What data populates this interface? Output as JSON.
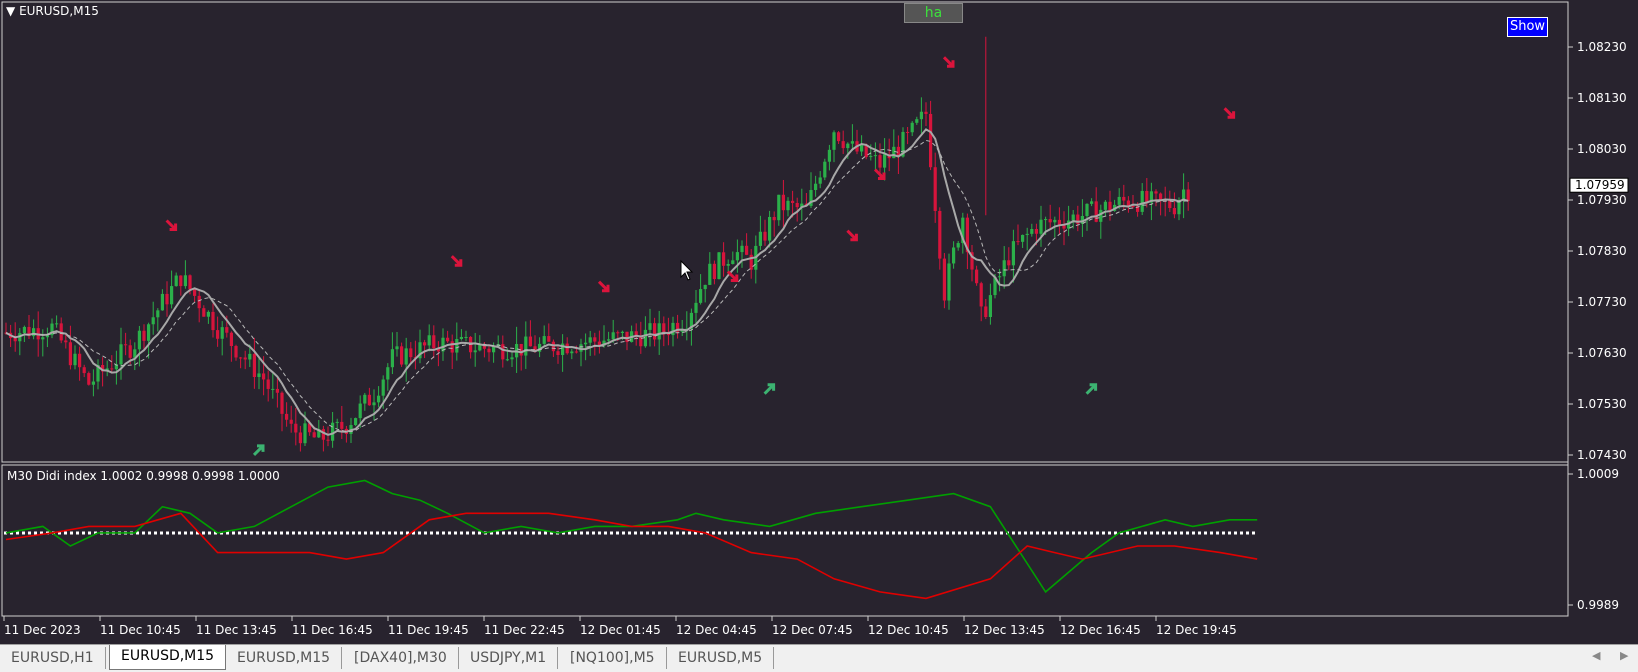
{
  "window": {
    "symbol_title": "EURUSD,M15",
    "indicator_title": "M30 Didi index 1.0002 0.9998 0.9998 1.0000",
    "ha_button": "ha",
    "show_button": "Show",
    "current_price": "1.07959"
  },
  "tabs": [
    {
      "label": "EURUSD,H1",
      "active": false
    },
    {
      "label": "EURUSD,M15",
      "active": true
    },
    {
      "label": "EURUSD,M15",
      "active": false
    },
    {
      "label": "[DAX40],M30",
      "active": false
    },
    {
      "label": "USDJPY,M1",
      "active": false
    },
    {
      "label": "[NQ100],M5",
      "active": false
    },
    {
      "label": "EURUSD,M5",
      "active": false
    }
  ],
  "chart_data": [
    {
      "type": "candlestick",
      "title": "EURUSD,M15",
      "ylim": [
        1.0738,
        1.0828
      ],
      "price_axis_ticks": [
        "1.08230",
        "1.08130",
        "1.08030",
        "1.07930",
        "1.07830",
        "1.07730",
        "1.07630",
        "1.07530",
        "1.07430"
      ],
      "time_axis_labels": [
        "11 Dec 2023",
        "11 Dec 10:45",
        "11 Dec 13:45",
        "11 Dec 16:45",
        "11 Dec 19:45",
        "11 Dec 22:45",
        "12 Dec 01:45",
        "12 Dec 04:45",
        "12 Dec 07:45",
        "12 Dec 10:45",
        "12 Dec 13:45",
        "12 Dec 16:45",
        "12 Dec 19:45"
      ],
      "colors": {
        "bull": "#2bb04a",
        "bear": "#d7143c",
        "ma": "#a8a8a8",
        "ma_slow": "#b8b8b8",
        "arrow_up": "#3cb371",
        "arrow_down": "#dc143c"
      },
      "close_path": [
        [
          0,
          1.0767
        ],
        [
          10,
          1.0768
        ],
        [
          18,
          1.0757
        ],
        [
          28,
          1.0765
        ],
        [
          38,
          1.0778
        ],
        [
          46,
          1.0768
        ],
        [
          56,
          1.0758
        ],
        [
          62,
          1.0748
        ],
        [
          68,
          1.0746
        ],
        [
          74,
          1.0749
        ],
        [
          80,
          1.0755
        ],
        [
          84,
          1.0762
        ],
        [
          94,
          1.0765
        ],
        [
          104,
          1.0764
        ],
        [
          114,
          1.0764
        ],
        [
          124,
          1.0765
        ],
        [
          134,
          1.0766
        ],
        [
          142,
          1.0767
        ],
        [
          148,
          1.077
        ],
        [
          152,
          1.0778
        ],
        [
          158,
          1.0783
        ],
        [
          162,
          1.0781
        ],
        [
          168,
          1.0792
        ],
        [
          174,
          1.0791
        ],
        [
          180,
          1.0807
        ],
        [
          184,
          1.0803
        ],
        [
          190,
          1.08
        ],
        [
          196,
          1.0805
        ],
        [
          200,
          1.081
        ],
        [
          204,
          1.0775
        ],
        [
          208,
          1.079
        ],
        [
          212,
          1.077
        ],
        [
          218,
          1.0782
        ],
        [
          224,
          1.0788
        ],
        [
          234,
          1.079
        ],
        [
          244,
          1.0793
        ],
        [
          254,
          1.0792
        ],
        [
          256,
          1.0795
        ]
      ],
      "arrows_down": [
        [
          36,
          1.0788
        ],
        [
          98,
          1.0781
        ],
        [
          130,
          1.0776
        ],
        [
          158,
          1.0778
        ],
        [
          184,
          1.0786
        ],
        [
          190,
          1.0798
        ],
        [
          205,
          1.082
        ],
        [
          266,
          1.081
        ]
      ],
      "arrows_up": [
        [
          55,
          1.0744
        ],
        [
          166,
          1.0756
        ],
        [
          236,
          1.0756
        ]
      ],
      "bars": 258
    },
    {
      "type": "line",
      "title": "M30 Didi index 1.0002 0.9998 0.9998 1.0000",
      "ylim": [
        0.9989,
        1.0009
      ],
      "axis_ticks": [
        "1.0009",
        "0.9989"
      ],
      "series": [
        {
          "name": "",
          "color": "#00a000",
          "points": [
            [
              0,
              1.0
            ],
            [
              8,
              1.0001
            ],
            [
              14,
              0.9998
            ],
            [
              20,
              1.0
            ],
            [
              28,
              1.0
            ],
            [
              34,
              1.0004
            ],
            [
              40,
              1.0003
            ],
            [
              46,
              1.0
            ],
            [
              54,
              1.0001
            ],
            [
              62,
              1.0004
            ],
            [
              70,
              1.0007
            ],
            [
              78,
              1.0008
            ],
            [
              84,
              1.0006
            ],
            [
              90,
              1.0005
            ],
            [
              96,
              1.0003
            ],
            [
              104,
              1.0
            ],
            [
              112,
              1.0001
            ],
            [
              120,
              1.0
            ],
            [
              128,
              1.0001
            ],
            [
              136,
              1.0001
            ],
            [
              146,
              1.0002
            ],
            [
              150,
              1.0003
            ],
            [
              156,
              1.0002
            ],
            [
              166,
              1.0001
            ],
            [
              176,
              1.0003
            ],
            [
              186,
              1.0004
            ],
            [
              196,
              1.0005
            ],
            [
              206,
              1.0006
            ],
            [
              214,
              1.0004
            ],
            [
              226,
              0.9991
            ],
            [
              236,
              0.9997
            ],
            [
              242,
              1.0
            ],
            [
              252,
              1.0002
            ],
            [
              258,
              1.0001
            ],
            [
              266,
              1.0002
            ],
            [
              272,
              1.0002
            ]
          ]
        },
        {
          "name": "",
          "color": "#e00000",
          "points": [
            [
              0,
              0.9999
            ],
            [
              10,
              1.0
            ],
            [
              18,
              1.0001
            ],
            [
              28,
              1.0001
            ],
            [
              38,
              1.0003
            ],
            [
              46,
              0.9997
            ],
            [
              54,
              0.9997
            ],
            [
              66,
              0.9997
            ],
            [
              74,
              0.9996
            ],
            [
              82,
              0.9997
            ],
            [
              92,
              1.0002
            ],
            [
              100,
              1.0003
            ],
            [
              108,
              1.0003
            ],
            [
              118,
              1.0003
            ],
            [
              128,
              1.0002
            ],
            [
              136,
              1.0001
            ],
            [
              144,
              1.0001
            ],
            [
              152,
              1.0
            ],
            [
              162,
              0.9997
            ],
            [
              172,
              0.9996
            ],
            [
              180,
              0.9993
            ],
            [
              190,
              0.9991
            ],
            [
              200,
              0.999
            ],
            [
              214,
              0.9993
            ],
            [
              222,
              0.9998
            ],
            [
              228,
              0.9997
            ],
            [
              234,
              0.9996
            ],
            [
              246,
              0.9998
            ],
            [
              254,
              0.9998
            ],
            [
              264,
              0.9997
            ],
            [
              272,
              0.9996
            ]
          ]
        }
      ]
    }
  ]
}
